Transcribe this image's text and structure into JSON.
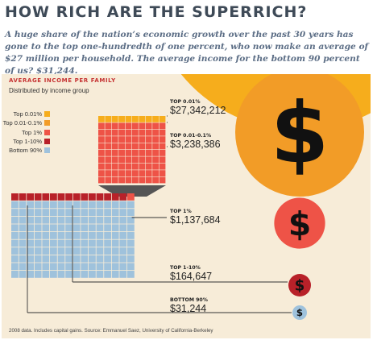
{
  "headline": "HOW RICH ARE THE SUPERRICH?",
  "deck": "A huge share of the nation’s economic growth over the past 30 years has gone to the top one-hundredth of one percent, who now make an average of $27 million per household. The average income for the bottom 90 percent of us? $31,244.",
  "panel": {
    "title": "AVERAGE INCOME PER FAMILY",
    "subtitle": "Distributed by income group",
    "footnote": "2008 data. Includes capital gains. Source: Emmanuel Saez, University of California-Berkeley"
  },
  "legend": [
    {
      "label": "Top 0.01%",
      "color": "#f6ad1c"
    },
    {
      "label": "Top 0.01-0.1%",
      "color": "#f29c27"
    },
    {
      "label": "Top 1%",
      "color": "#ee5347"
    },
    {
      "label": "Top 1-10%",
      "color": "#b82129"
    },
    {
      "label": "Bottom 90%",
      "color": "#9fc2dc"
    }
  ],
  "chart_data": {
    "type": "bubble",
    "title": "AVERAGE INCOME PER FAMILY",
    "subtitle": "Distributed by income group",
    "unit": "USD",
    "series": [
      {
        "name": "Top 0.01%",
        "label": "TOP 0.01%",
        "value": 27342212,
        "display": "$27,342,212",
        "color": "#f6ad1c",
        "share_of_households_pct": 0.01
      },
      {
        "name": "Top 0.01-0.1%",
        "label": "TOP 0.01-0.1%",
        "value": 3238386,
        "display": "$3,238,386",
        "color": "#f29c27",
        "share_of_households_pct": 0.09
      },
      {
        "name": "Top 1%",
        "label": "TOP 1%",
        "value": 1137684,
        "display": "$1,137,684",
        "color": "#ee5347",
        "share_of_households_pct": 0.9
      },
      {
        "name": "Top 1-10%",
        "label": "TOP 1-10%",
        "value": 164647,
        "display": "$164,647",
        "color": "#b82129",
        "share_of_households_pct": 9
      },
      {
        "name": "Bottom 90%",
        "label": "BOTTOM 90%",
        "value": 31244,
        "display": "$31,244",
        "color": "#9fc2dc",
        "share_of_households_pct": 90
      }
    ],
    "circle_glyph": "$",
    "grid": false
  }
}
